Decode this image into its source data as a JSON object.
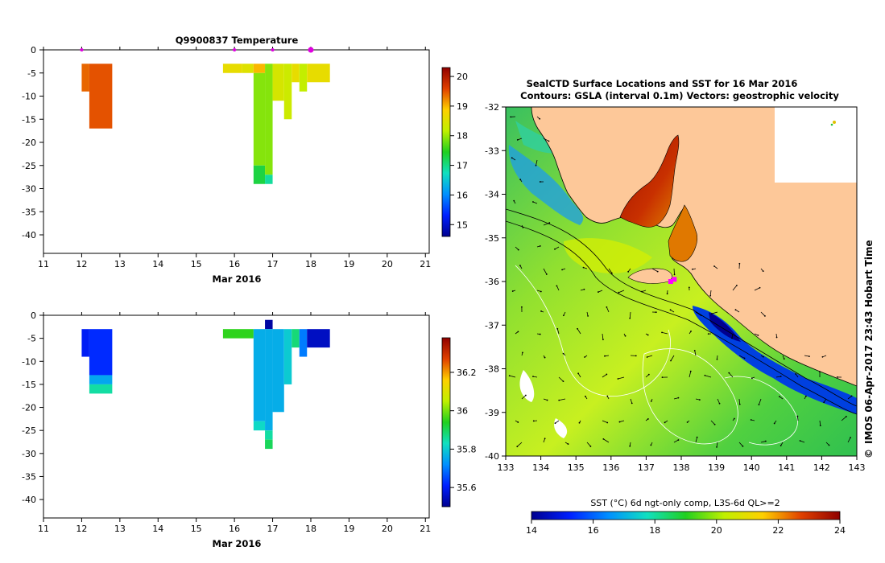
{
  "chart_data": [
    {
      "type": "heatmap",
      "title": "Q9900837  Temperature",
      "xlabel": "Mar 2016",
      "x_ticks": [
        "11",
        "12",
        "13",
        "14",
        "15",
        "16",
        "17",
        "18",
        "19",
        "20",
        "21"
      ],
      "xlim": [
        11,
        21.1
      ],
      "y_ticks": [
        "0",
        "-5",
        "-10",
        "-15",
        "-20",
        "-25",
        "-30",
        "-35",
        "-40"
      ],
      "ylim": [
        -44,
        0
      ],
      "colorbar": {
        "range": [
          14.6,
          20.3
        ],
        "ticks": [
          "15",
          "16",
          "17",
          "18",
          "19",
          "20"
        ]
      },
      "profile_markers": [
        12,
        16,
        17,
        18
      ],
      "cells": [
        {
          "x0": 12.0,
          "x1": 12.2,
          "y0": -3,
          "y1": -9,
          "v": 19.4
        },
        {
          "x0": 12.2,
          "x1": 12.8,
          "y0": -3,
          "y1": -17,
          "v": 19.5
        },
        {
          "x0": 15.7,
          "x1": 16.2,
          "y0": -3,
          "y1": -5,
          "v": 18.6
        },
        {
          "x0": 16.2,
          "x1": 16.5,
          "y0": -3,
          "y1": -5,
          "v": 18.5
        },
        {
          "x0": 16.5,
          "x1": 16.8,
          "y0": -3,
          "y1": -5,
          "v": 19.0
        },
        {
          "x0": 16.5,
          "x1": 16.8,
          "y0": -5,
          "y1": -25,
          "v": 17.9
        },
        {
          "x0": 16.5,
          "x1": 16.8,
          "y0": -25,
          "y1": -29,
          "v": 17.3
        },
        {
          "x0": 16.8,
          "x1": 17.0,
          "y0": -3,
          "y1": -27,
          "v": 17.9
        },
        {
          "x0": 16.8,
          "x1": 17.0,
          "y0": -27,
          "y1": -29,
          "v": 16.9
        },
        {
          "x0": 17.0,
          "x1": 17.3,
          "y0": -3,
          "y1": -11,
          "v": 18.4
        },
        {
          "x0": 17.3,
          "x1": 17.5,
          "y0": -3,
          "y1": -15,
          "v": 18.3
        },
        {
          "x0": 17.5,
          "x1": 17.7,
          "y0": -3,
          "y1": -7,
          "v": 18.6
        },
        {
          "x0": 17.7,
          "x1": 17.9,
          "y0": -3,
          "y1": -9,
          "v": 18.2
        },
        {
          "x0": 17.9,
          "x1": 18.5,
          "y0": -3,
          "y1": -7,
          "v": 18.6
        }
      ]
    },
    {
      "type": "heatmap",
      "xlabel": "Mar 2016",
      "x_ticks": [
        "11",
        "12",
        "13",
        "14",
        "15",
        "16",
        "17",
        "18",
        "19",
        "20",
        "21"
      ],
      "xlim": [
        11,
        21.1
      ],
      "y_ticks": [
        "0",
        "-5",
        "-10",
        "-15",
        "-20",
        "-25",
        "-30",
        "-35",
        "-40"
      ],
      "ylim": [
        -44,
        0
      ],
      "colorbar": {
        "range": [
          35.5,
          36.38
        ],
        "ticks": [
          "35.6",
          "35.8",
          "36",
          "36.2"
        ]
      },
      "cells": [
        {
          "x0": 12.0,
          "x1": 12.2,
          "y0": -3,
          "y1": -9,
          "v": 35.6
        },
        {
          "x0": 12.2,
          "x1": 12.8,
          "y0": -3,
          "y1": -13,
          "v": 35.62
        },
        {
          "x0": 12.2,
          "x1": 12.8,
          "y0": -13,
          "y1": -15,
          "v": 35.75
        },
        {
          "x0": 12.2,
          "x1": 12.8,
          "y0": -15,
          "y1": -17,
          "v": 35.85
        },
        {
          "x0": 15.7,
          "x1": 16.5,
          "y0": -3,
          "y1": -5,
          "v": 35.95
        },
        {
          "x0": 16.5,
          "x1": 16.8,
          "y0": -3,
          "y1": -23,
          "v": 35.76
        },
        {
          "x0": 16.5,
          "x1": 16.8,
          "y0": -23,
          "y1": -25,
          "v": 35.82
        },
        {
          "x0": 16.8,
          "x1": 17.0,
          "y0": -1,
          "y1": -3,
          "v": 35.52
        },
        {
          "x0": 16.8,
          "x1": 17.0,
          "y0": -3,
          "y1": -25,
          "v": 35.76
        },
        {
          "x0": 16.8,
          "x1": 17.0,
          "y0": -25,
          "y1": -27,
          "v": 35.85
        },
        {
          "x0": 16.8,
          "x1": 17.0,
          "y0": -27,
          "y1": -29,
          "v": 35.9
        },
        {
          "x0": 17.0,
          "x1": 17.3,
          "y0": -3,
          "y1": -21,
          "v": 35.76
        },
        {
          "x0": 17.3,
          "x1": 17.5,
          "y0": -3,
          "y1": -15,
          "v": 35.8
        },
        {
          "x0": 17.5,
          "x1": 17.7,
          "y0": -3,
          "y1": -7,
          "v": 35.88
        },
        {
          "x0": 17.7,
          "x1": 17.9,
          "y0": -3,
          "y1": -9,
          "v": 35.7
        },
        {
          "x0": 17.9,
          "x1": 18.5,
          "y0": -3,
          "y1": -7,
          "v": 35.55
        }
      ]
    },
    {
      "type": "heatmap",
      "title_line1": "SealCTD Surface Locations and SST for 16 Mar 2016",
      "title_line2": "Contours: GSLA (interval 0.1m) Vectors: geostrophic velocity",
      "x_ticks": [
        "133",
        "134",
        "135",
        "136",
        "137",
        "138",
        "139",
        "140",
        "141",
        "142",
        "143"
      ],
      "xlim": [
        133,
        143
      ],
      "y_ticks": [
        "-32",
        "-33",
        "-34",
        "-35",
        "-36",
        "-37",
        "-38",
        "-39",
        "-40"
      ],
      "ylim": [
        -40,
        -32
      ],
      "colorbar_label": "SST (°C) 6d ngt-only comp, L3S-6d QL>=2",
      "colorbar": {
        "range": [
          14,
          24
        ],
        "ticks": [
          "14",
          "16",
          "18",
          "20",
          "22",
          "24"
        ]
      },
      "side_label": "IMOS 06-Apr-2017 23:43 Hobart Time",
      "seal_locations": [
        [
          137.8,
          -35.95
        ],
        [
          137.7,
          -36.0
        ]
      ]
    }
  ]
}
